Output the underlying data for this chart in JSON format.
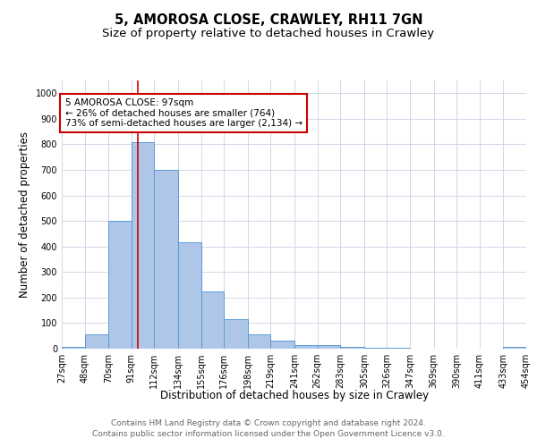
{
  "title": "5, AMOROSA CLOSE, CRAWLEY, RH11 7GN",
  "subtitle": "Size of property relative to detached houses in Crawley",
  "xlabel": "Distribution of detached houses by size in Crawley",
  "ylabel": "Number of detached properties",
  "bar_edges": [
    27,
    48,
    70,
    91,
    112,
    134,
    155,
    176,
    198,
    219,
    241,
    262,
    283,
    305,
    326,
    347,
    369,
    390,
    411,
    433,
    454
  ],
  "bar_heights": [
    8,
    57,
    500,
    810,
    700,
    415,
    225,
    115,
    57,
    32,
    15,
    13,
    8,
    5,
    5,
    0,
    0,
    0,
    0,
    8,
    0
  ],
  "bar_color": "#aec6e8",
  "bar_edge_color": "#5b9bd5",
  "grid_color": "#d0d8e8",
  "vline_x": 97,
  "vline_color": "#cc0000",
  "annotation_text": "5 AMOROSA CLOSE: 97sqm\n← 26% of detached houses are smaller (764)\n73% of semi-detached houses are larger (2,134) →",
  "annotation_box_color": "#ffffff",
  "annotation_box_edge_color": "#cc0000",
  "ylim": [
    0,
    1050
  ],
  "yticks": [
    0,
    100,
    200,
    300,
    400,
    500,
    600,
    700,
    800,
    900,
    1000
  ],
  "tick_labels": [
    "27sqm",
    "48sqm",
    "70sqm",
    "91sqm",
    "112sqm",
    "134sqm",
    "155sqm",
    "176sqm",
    "198sqm",
    "219sqm",
    "241sqm",
    "262sqm",
    "283sqm",
    "305sqm",
    "326sqm",
    "347sqm",
    "369sqm",
    "390sqm",
    "411sqm",
    "433sqm",
    "454sqm"
  ],
  "footer_line1": "Contains HM Land Registry data © Crown copyright and database right 2024.",
  "footer_line2": "Contains public sector information licensed under the Open Government Licence v3.0.",
  "title_fontsize": 10.5,
  "subtitle_fontsize": 9.5,
  "axis_label_fontsize": 8.5,
  "tick_fontsize": 7,
  "footer_fontsize": 6.5,
  "annotation_fontsize": 7.5
}
